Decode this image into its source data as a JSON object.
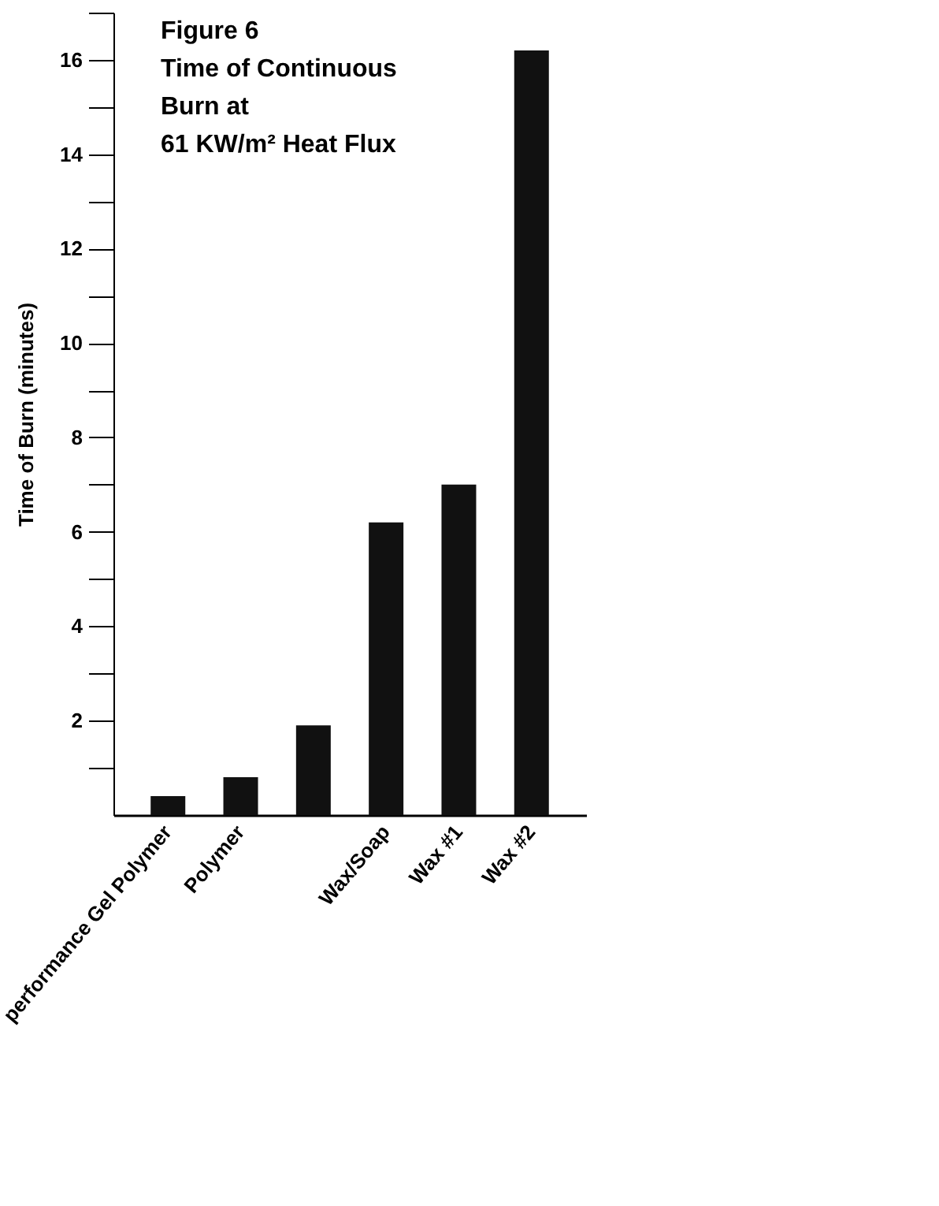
{
  "chart_data": {
    "type": "bar",
    "title": "Figure 6\nTime of Continuous\nBurn at\n61 KW/m² Heat Flux",
    "ylabel": "Time of Burn (minutes)",
    "categories": [
      "performance Gel Polymer",
      "Polymer",
      null,
      "Wax/Soap",
      "Wax #1",
      "Wax #2"
    ],
    "values": [
      0.4,
      0.8,
      1.9,
      6.2,
      7.0,
      16.2
    ],
    "color": "#111111",
    "ylim": [
      0,
      17
    ],
    "yticks": [
      {
        "value": 1,
        "label": null
      },
      2,
      {
        "value": 3,
        "label": null
      },
      4,
      {
        "value": 5,
        "label": null
      },
      6,
      {
        "value": 7,
        "label": null
      },
      8,
      {
        "value": 9,
        "label": null
      },
      10,
      {
        "value": 11,
        "label": null
      },
      12,
      {
        "value": 13,
        "label": null
      },
      14,
      {
        "value": 15,
        "label": null
      },
      16,
      {
        "value": 17,
        "label": null
      }
    ],
    "grid": false
  }
}
